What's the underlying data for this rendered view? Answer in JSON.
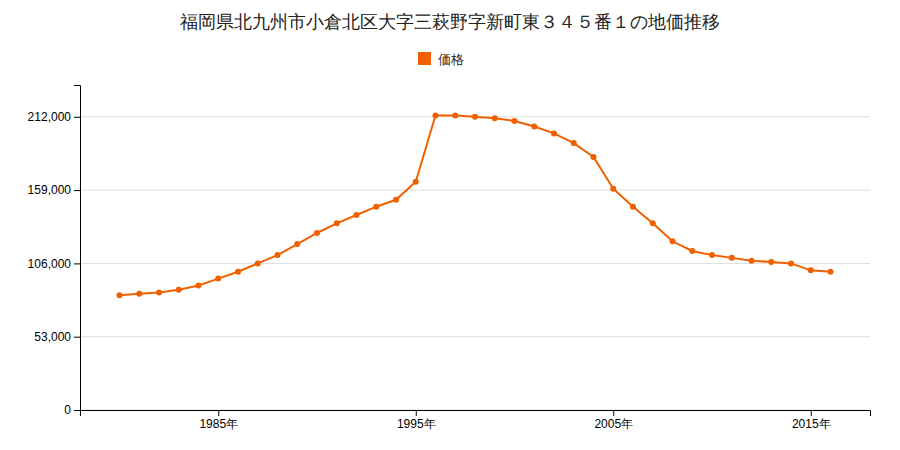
{
  "chart_data": {
    "type": "line",
    "title": "福岡県北九州市小倉北区大字三萩野字新町東３４５番１の地価推移",
    "x": [
      1980,
      1981,
      1982,
      1983,
      1984,
      1985,
      1986,
      1987,
      1988,
      1989,
      1990,
      1991,
      1992,
      1993,
      1994,
      1995,
      1996,
      1997,
      1998,
      1999,
      2000,
      2001,
      2002,
      2003,
      2004,
      2005,
      2006,
      2007,
      2008,
      2009,
      2010,
      2011,
      2012,
      2013,
      2014,
      2015,
      2016
    ],
    "series": [
      {
        "name": "価格",
        "color": "#f06000",
        "marker": "circle",
        "values": [
          83000,
          84000,
          85000,
          87000,
          90000,
          95000,
          100000,
          106000,
          112000,
          120000,
          128000,
          135000,
          141000,
          147000,
          152000,
          165000,
          213000,
          213000,
          212000,
          211000,
          209000,
          205000,
          200000,
          193000,
          183000,
          160000,
          147000,
          135000,
          122000,
          115000,
          112000,
          110000,
          108000,
          107000,
          106000,
          101000,
          100000
        ]
      }
    ],
    "xlim": [
      1978,
      2018
    ],
    "xticks": [
      {
        "value": 1985,
        "label": "1985年"
      },
      {
        "value": 1995,
        "label": "1995年"
      },
      {
        "value": 2005,
        "label": "2005年"
      },
      {
        "value": 2015,
        "label": "2015年"
      }
    ],
    "ylim": [
      0,
      235000
    ],
    "yticks": [
      0,
      {
        "value": 53000,
        "label": "53,000"
      },
      {
        "value": 106000,
        "label": "106,000"
      },
      {
        "value": 159000,
        "label": "159,000"
      },
      {
        "value": 212000,
        "label": "212,000"
      }
    ],
    "grid": true,
    "legend": "top"
  }
}
